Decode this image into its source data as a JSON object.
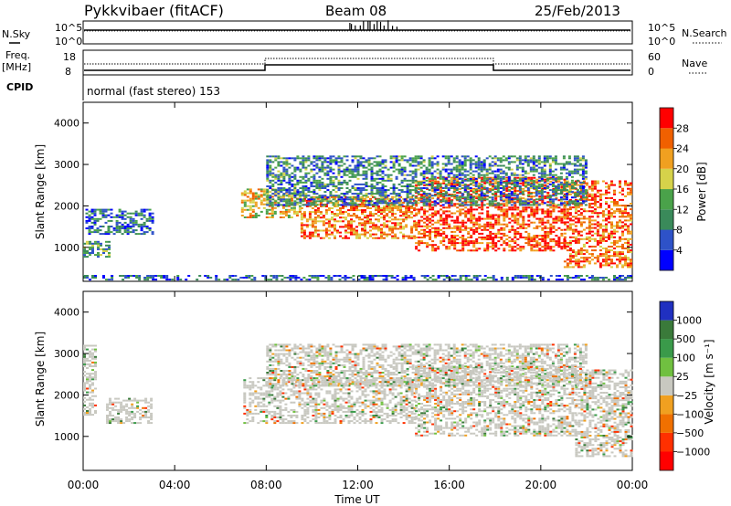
{
  "header": {
    "station": "Pykkvibaer (fitACF)",
    "beam": "Beam 08",
    "date": "25/Feb/2013"
  },
  "noise_panel": {
    "left_label": "N.Sky",
    "right_label": "N.Search",
    "left_ticks": [
      "10^5",
      "10^0"
    ],
    "right_ticks": [
      "10^5",
      "10^0"
    ]
  },
  "freq_panel": {
    "left_label_line1": "Freq.",
    "left_label_line2": "[MHz]",
    "right_label": "Nave",
    "left_ticks": [
      "18",
      "8"
    ],
    "right_ticks": [
      "60",
      "0"
    ],
    "cpid_label": "CPID",
    "cpid_value": "normal (fast stereo) 153"
  },
  "chart_data": [
    {
      "type": "heatmap",
      "name": "power",
      "ylabel": "Slant Range [km]",
      "ylim": [
        180,
        4500
      ],
      "yticks": [
        1000,
        2000,
        3000,
        4000
      ],
      "xlim_hours": [
        0,
        24
      ],
      "xticks": [
        "00:00",
        "04:00",
        "08:00",
        "12:00",
        "16:00",
        "20:00",
        "00:00"
      ],
      "colorbar": {
        "label": "Power [dB]",
        "range": [
          0,
          32
        ],
        "ticks": [
          "4",
          "8",
          "12",
          "16",
          "20",
          "24",
          "28"
        ],
        "colors": [
          "#0000ff",
          "#2e52c8",
          "#3a8a5a",
          "#4aa24a",
          "#d6d24a",
          "#f0a020",
          "#f06000",
          "#ff0000"
        ]
      },
      "regions": [
        {
          "t": [
            0.1,
            3.0
          ],
          "r": [
            1300,
            1900
          ],
          "level": 0.25
        },
        {
          "t": [
            0.0,
            1.2
          ],
          "r": [
            750,
            1150
          ],
          "level": 0.4
        },
        {
          "t": [
            0.0,
            24.0
          ],
          "r": [
            200,
            300
          ],
          "level": 0.2
        },
        {
          "t": [
            6.9,
            9.5
          ],
          "r": [
            1700,
            2400
          ],
          "level": 0.6
        },
        {
          "t": [
            9.5,
            14.5
          ],
          "r": [
            1200,
            2200
          ],
          "level": 0.75
        },
        {
          "t": [
            14.5,
            21.0
          ],
          "r": [
            900,
            2700
          ],
          "level": 0.85
        },
        {
          "t": [
            21.0,
            24.0
          ],
          "r": [
            500,
            2600
          ],
          "level": 0.8
        },
        {
          "t": [
            8.0,
            22.0
          ],
          "r": [
            2000,
            3200
          ],
          "level": 0.3
        }
      ]
    },
    {
      "type": "heatmap",
      "name": "velocity",
      "ylabel": "Slant Range [km]",
      "ylim": [
        180,
        4500
      ],
      "yticks": [
        1000,
        2000,
        3000,
        4000
      ],
      "xlim_hours": [
        0,
        24
      ],
      "xticks": [
        "00:00",
        "04:00",
        "08:00",
        "12:00",
        "16:00",
        "20:00",
        "00:00"
      ],
      "xlabel": "Time UT",
      "colorbar": {
        "label": "Velocity [m s⁻¹]",
        "range": [
          -1250,
          1250
        ],
        "ticks": [
          "1000",
          "500",
          "100",
          "25",
          "−25",
          "−100",
          "−500",
          "−1000"
        ],
        "colors": [
          "#2030c0",
          "#3a7a3a",
          "#3a9a4a",
          "#70c040",
          "#c8c8c0",
          "#f0a020",
          "#f07000",
          "#ff3000",
          "#ff0000"
        ]
      },
      "regions": [
        {
          "t": [
            0.0,
            0.5
          ],
          "r": [
            1500,
            3200
          ],
          "level": 0.5
        },
        {
          "t": [
            1.0,
            3.0
          ],
          "r": [
            1300,
            1900
          ],
          "level": 0.5
        },
        {
          "t": [
            7.0,
            14.5
          ],
          "r": [
            1300,
            2400
          ],
          "level": 0.5
        },
        {
          "t": [
            14.5,
            21.5
          ],
          "r": [
            1000,
            2700
          ],
          "level": 0.45
        },
        {
          "t": [
            21.5,
            24.0
          ],
          "r": [
            500,
            2600
          ],
          "level": 0.5
        },
        {
          "t": [
            8.0,
            22.0
          ],
          "r": [
            2200,
            3200
          ],
          "level": 0.5
        }
      ]
    }
  ]
}
